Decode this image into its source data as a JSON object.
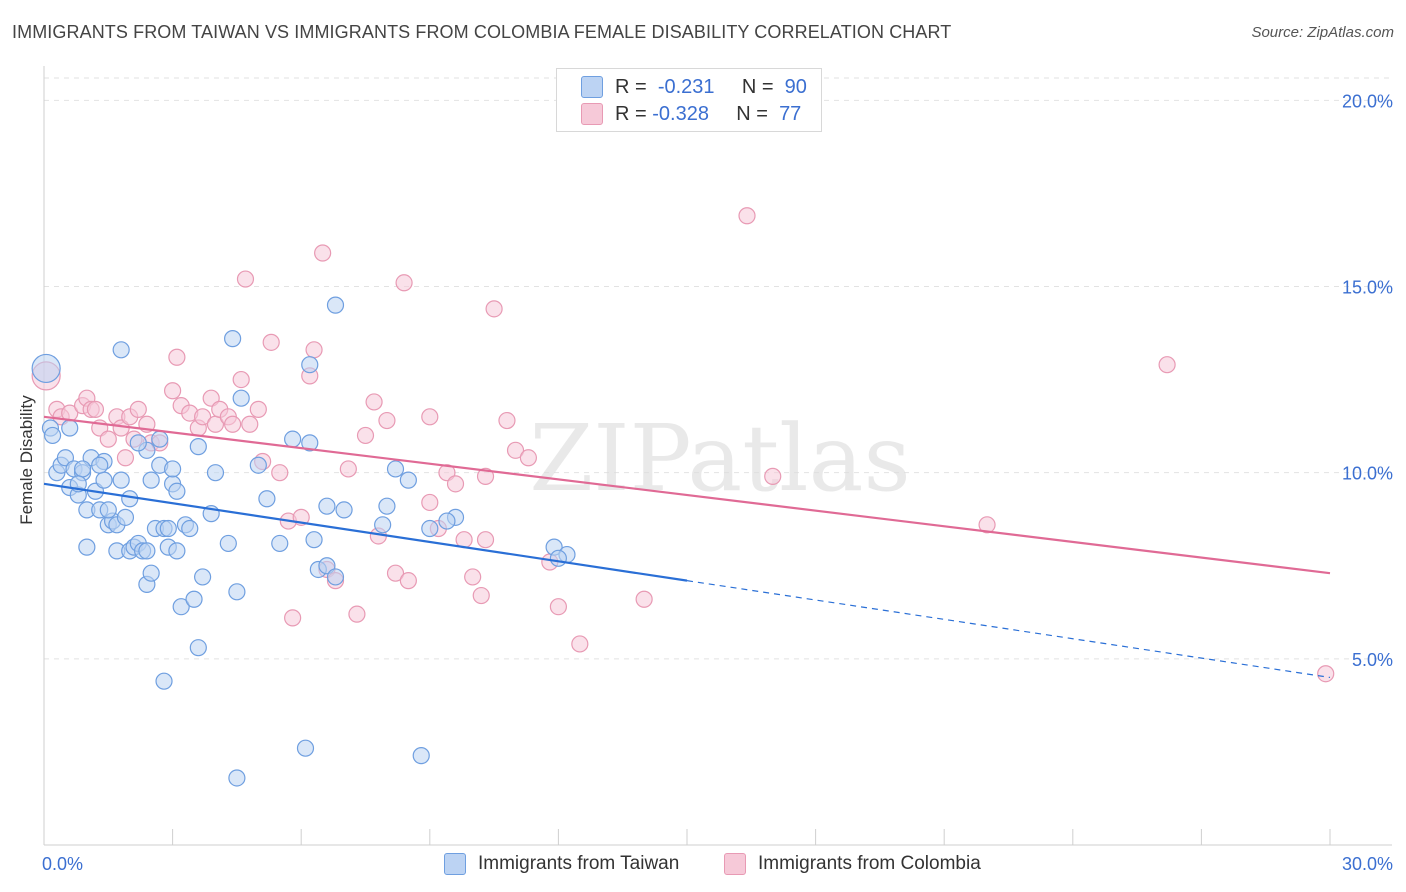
{
  "title": "IMMIGRANTS FROM TAIWAN VS IMMIGRANTS FROM COLOMBIA FEMALE DISABILITY CORRELATION CHART",
  "source": "Source: ZipAtlas.com",
  "watermark": "ZIPatlas",
  "legend": {
    "taiwan": {
      "r_label": "R =",
      "r_value": "-0.231",
      "n_label": "N =",
      "n_value": "90"
    },
    "colombia": {
      "r_label": "R =",
      "r_value": "-0.328",
      "n_label": "N =",
      "n_value": "77"
    }
  },
  "colors": {
    "taiwan": "#6f9fe0",
    "taiwan_fill": "#bcd3f3",
    "taiwan_line": "#2a6fd6",
    "colombia": "#e89ab4",
    "colombia_fill": "#f6c9d8",
    "colombia_line": "#e06a95",
    "tick_label": "#3b6fd1"
  },
  "chart_data": {
    "type": "scatter",
    "ylabel": "Female Disability",
    "xlim": [
      0,
      30
    ],
    "ylim": [
      0,
      20.6
    ],
    "x_tick_labels": {
      "left": "0.0%",
      "right": "30.0%"
    },
    "y_ticks": [
      {
        "value": 5,
        "label": "5.0%"
      },
      {
        "value": 10,
        "label": "10.0%"
      },
      {
        "value": 15,
        "label": "15.0%"
      },
      {
        "value": 20,
        "label": "20.0%"
      }
    ],
    "grid": true,
    "legend_position": "top-center",
    "series": [
      {
        "name": "Immigrants from Taiwan",
        "color_key": "taiwan",
        "trend": {
          "x0": 0,
          "y0": 9.7,
          "x1": 15,
          "y1": 7.1,
          "dash_to_x": 30,
          "dash_to_y": 4.5
        },
        "points": [
          [
            0.05,
            12.8
          ],
          [
            0.15,
            11.2
          ],
          [
            0.2,
            11.0
          ],
          [
            0.3,
            10.0
          ],
          [
            0.4,
            10.2
          ],
          [
            0.5,
            10.4
          ],
          [
            0.6,
            9.6
          ],
          [
            0.7,
            10.1
          ],
          [
            0.8,
            9.4
          ],
          [
            0.9,
            10.0
          ],
          [
            1.0,
            9.0
          ],
          [
            1.0,
            8.0
          ],
          [
            1.1,
            10.4
          ],
          [
            1.2,
            9.5
          ],
          [
            1.3,
            9.0
          ],
          [
            1.4,
            10.3
          ],
          [
            1.4,
            9.8
          ],
          [
            1.5,
            8.6
          ],
          [
            1.6,
            8.7
          ],
          [
            1.7,
            8.6
          ],
          [
            1.7,
            7.9
          ],
          [
            1.8,
            9.8
          ],
          [
            1.9,
            8.8
          ],
          [
            2.0,
            7.9
          ],
          [
            2.0,
            9.3
          ],
          [
            2.1,
            8.0
          ],
          [
            2.2,
            8.1
          ],
          [
            2.3,
            7.9
          ],
          [
            2.4,
            7.0
          ],
          [
            2.4,
            7.9
          ],
          [
            2.5,
            7.3
          ],
          [
            2.4,
            10.6
          ],
          [
            2.5,
            9.8
          ],
          [
            2.6,
            8.5
          ],
          [
            2.7,
            10.2
          ],
          [
            2.8,
            8.5
          ],
          [
            2.8,
            4.4
          ],
          [
            2.9,
            8.5
          ],
          [
            2.9,
            8.0
          ],
          [
            3.0,
            9.7
          ],
          [
            3.1,
            9.5
          ],
          [
            3.1,
            7.9
          ],
          [
            3.2,
            6.4
          ],
          [
            3.3,
            8.6
          ],
          [
            3.4,
            8.5
          ],
          [
            3.5,
            6.6
          ],
          [
            3.6,
            5.3
          ],
          [
            3.7,
            7.2
          ],
          [
            3.9,
            8.9
          ],
          [
            4.3,
            8.1
          ],
          [
            4.5,
            6.8
          ],
          [
            4.6,
            12.0
          ],
          [
            4.4,
            13.6
          ],
          [
            4.5,
            1.8
          ],
          [
            5.0,
            10.2
          ],
          [
            5.2,
            9.3
          ],
          [
            5.5,
            8.1
          ],
          [
            5.8,
            10.9
          ],
          [
            6.3,
            8.2
          ],
          [
            6.2,
            10.8
          ],
          [
            6.4,
            7.4
          ],
          [
            6.6,
            9.1
          ],
          [
            6.6,
            7.5
          ],
          [
            6.8,
            7.2
          ],
          [
            7.0,
            9.0
          ],
          [
            7.9,
            8.6
          ],
          [
            8.0,
            9.1
          ],
          [
            8.2,
            10.1
          ],
          [
            8.5,
            9.8
          ],
          [
            8.8,
            2.4
          ],
          [
            9.0,
            8.5
          ],
          [
            9.6,
            8.8
          ],
          [
            9.4,
            8.7
          ],
          [
            11.9,
            8.0
          ],
          [
            12.2,
            7.8
          ],
          [
            12.0,
            7.7
          ],
          [
            3.6,
            10.7
          ],
          [
            2.7,
            10.9
          ],
          [
            4.0,
            10.0
          ],
          [
            6.1,
            2.6
          ],
          [
            6.8,
            14.5
          ],
          [
            6.2,
            12.9
          ],
          [
            1.8,
            13.3
          ],
          [
            0.9,
            10.1
          ],
          [
            0.6,
            11.2
          ],
          [
            1.3,
            10.2
          ],
          [
            0.8,
            9.7
          ],
          [
            1.5,
            9.0
          ],
          [
            2.2,
            10.8
          ],
          [
            3.0,
            10.1
          ]
        ]
      },
      {
        "name": "Immigrants from Colombia",
        "color_key": "colombia",
        "trend": {
          "x0": 0,
          "y0": 11.5,
          "x1": 30,
          "y1": 7.3
        },
        "points": [
          [
            0.05,
            12.6
          ],
          [
            0.3,
            11.7
          ],
          [
            0.4,
            11.5
          ],
          [
            0.6,
            11.6
          ],
          [
            0.9,
            11.8
          ],
          [
            1.0,
            12.0
          ],
          [
            1.1,
            11.7
          ],
          [
            1.3,
            11.2
          ],
          [
            1.5,
            10.9
          ],
          [
            1.7,
            11.5
          ],
          [
            1.8,
            11.2
          ],
          [
            1.9,
            10.4
          ],
          [
            2.0,
            11.5
          ],
          [
            2.1,
            10.9
          ],
          [
            2.2,
            11.7
          ],
          [
            2.4,
            11.3
          ],
          [
            2.5,
            10.8
          ],
          [
            2.7,
            10.8
          ],
          [
            3.0,
            12.2
          ],
          [
            3.1,
            13.1
          ],
          [
            3.2,
            11.8
          ],
          [
            3.4,
            11.6
          ],
          [
            3.6,
            11.2
          ],
          [
            3.7,
            11.5
          ],
          [
            3.9,
            12.0
          ],
          [
            4.0,
            11.3
          ],
          [
            4.1,
            11.7
          ],
          [
            4.3,
            11.5
          ],
          [
            4.4,
            11.3
          ],
          [
            4.6,
            12.5
          ],
          [
            4.7,
            15.2
          ],
          [
            4.8,
            11.3
          ],
          [
            5.0,
            11.7
          ],
          [
            5.1,
            10.3
          ],
          [
            5.3,
            13.5
          ],
          [
            5.5,
            10.0
          ],
          [
            5.7,
            8.7
          ],
          [
            5.8,
            6.1
          ],
          [
            6.0,
            8.8
          ],
          [
            6.2,
            12.6
          ],
          [
            6.3,
            13.3
          ],
          [
            6.5,
            15.9
          ],
          [
            6.6,
            7.4
          ],
          [
            6.8,
            7.1
          ],
          [
            7.1,
            10.1
          ],
          [
            7.3,
            6.2
          ],
          [
            7.5,
            11.0
          ],
          [
            7.7,
            11.9
          ],
          [
            7.8,
            8.3
          ],
          [
            8.0,
            11.4
          ],
          [
            8.2,
            7.3
          ],
          [
            8.4,
            15.1
          ],
          [
            8.5,
            7.1
          ],
          [
            9.0,
            11.5
          ],
          [
            9.2,
            8.5
          ],
          [
            9.4,
            10.0
          ],
          [
            9.6,
            9.7
          ],
          [
            9.8,
            8.2
          ],
          [
            10.0,
            7.2
          ],
          [
            10.2,
            6.7
          ],
          [
            10.3,
            9.9
          ],
          [
            10.5,
            14.4
          ],
          [
            10.8,
            11.4
          ],
          [
            11.0,
            10.6
          ],
          [
            11.3,
            10.4
          ],
          [
            11.8,
            7.6
          ],
          [
            12.0,
            6.4
          ],
          [
            12.5,
            5.4
          ],
          [
            14.0,
            6.6
          ],
          [
            16.4,
            16.9
          ],
          [
            17.0,
            9.9
          ],
          [
            22.0,
            8.6
          ],
          [
            26.2,
            12.9
          ],
          [
            29.9,
            4.6
          ],
          [
            9.0,
            9.2
          ],
          [
            10.3,
            8.2
          ],
          [
            1.2,
            11.7
          ]
        ]
      }
    ]
  },
  "bottom_legend": {
    "taiwan": "Immigrants from Taiwan",
    "colombia": "Immigrants from Colombia"
  }
}
